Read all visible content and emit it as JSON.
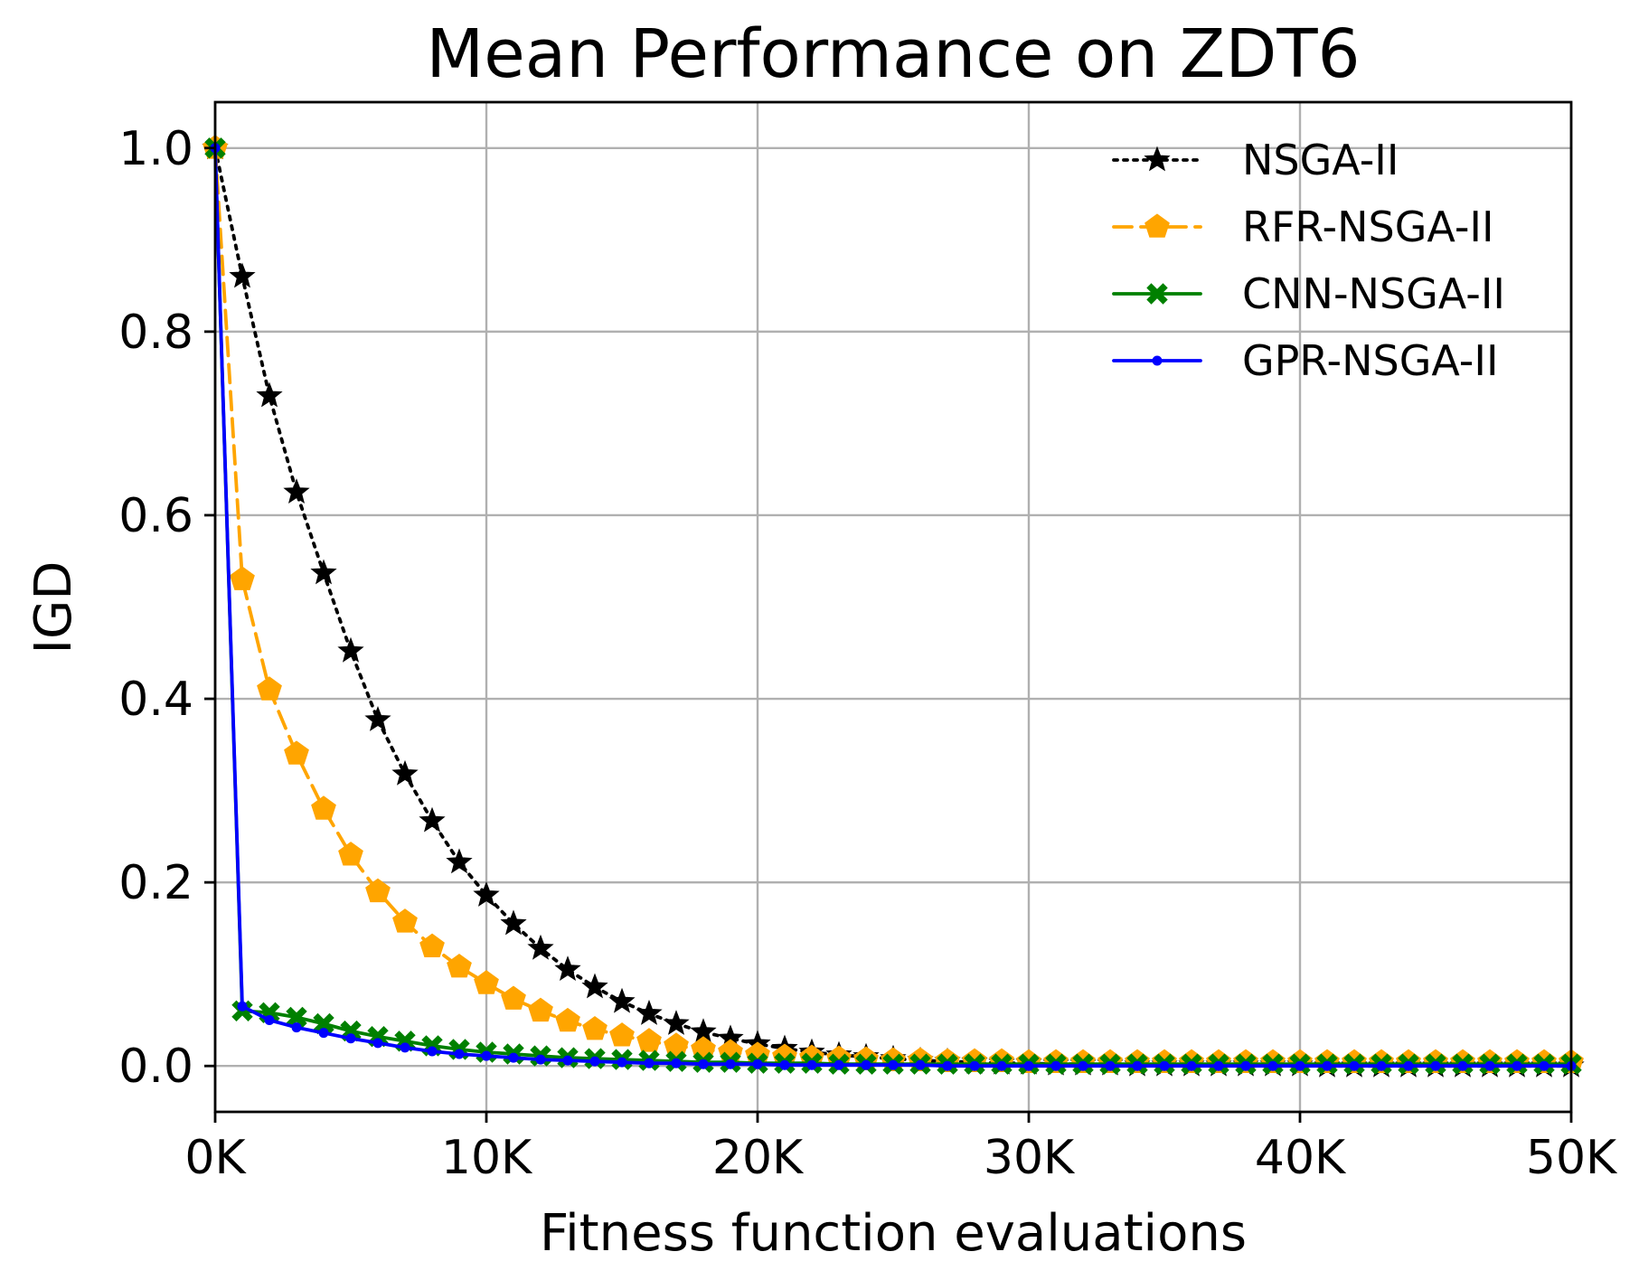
{
  "chart_data": {
    "type": "line",
    "title": "Mean Performance on ZDT6",
    "xlabel": "Fitness function evaluations",
    "ylabel": "IGD",
    "xlim": [
      0,
      50000
    ],
    "ylim": [
      -0.05,
      1.05
    ],
    "grid": true,
    "legend_position": "top-right",
    "x_ticks": [
      {
        "value": 0,
        "label": "0K"
      },
      {
        "value": 10000,
        "label": "10K"
      },
      {
        "value": 20000,
        "label": "20K"
      },
      {
        "value": 30000,
        "label": "30K"
      },
      {
        "value": 40000,
        "label": "40K"
      },
      {
        "value": 50000,
        "label": "50K"
      }
    ],
    "y_ticks": [
      {
        "value": 0.0,
        "label": "0.0"
      },
      {
        "value": 0.2,
        "label": "0.2"
      },
      {
        "value": 0.4,
        "label": "0.4"
      },
      {
        "value": 0.6,
        "label": "0.6"
      },
      {
        "value": 0.8,
        "label": "0.8"
      },
      {
        "value": 1.0,
        "label": "1.0"
      }
    ],
    "x": [
      0,
      1000,
      2000,
      3000,
      4000,
      5000,
      6000,
      7000,
      8000,
      9000,
      10000,
      11000,
      12000,
      13000,
      14000,
      15000,
      16000,
      17000,
      18000,
      19000,
      20000,
      21000,
      22000,
      23000,
      24000,
      25000,
      26000,
      27000,
      28000,
      29000,
      30000,
      31000,
      32000,
      33000,
      34000,
      35000,
      36000,
      37000,
      38000,
      39000,
      40000,
      41000,
      42000,
      43000,
      44000,
      45000,
      46000,
      47000,
      48000,
      49000,
      50000
    ],
    "series": [
      {
        "name": "NSGA-II",
        "color": "#000000",
        "linestyle": "dotted",
        "marker": "star",
        "values": [
          1.0,
          0.86,
          0.73,
          0.625,
          0.537,
          0.452,
          0.377,
          0.318,
          0.267,
          0.222,
          0.186,
          0.155,
          0.128,
          0.105,
          0.086,
          0.07,
          0.057,
          0.046,
          0.037,
          0.03,
          0.024,
          0.019,
          0.015,
          0.012,
          0.01,
          0.008,
          0.006,
          0.005,
          0.004,
          0.003,
          0.003,
          0.002,
          0.002,
          0.002,
          0.001,
          0.001,
          0.001,
          0.001,
          0.001,
          0.001,
          0.001,
          0.0,
          0.0,
          0.0,
          0.0,
          0.0,
          0.0,
          0.0,
          0.0,
          0.0,
          0.0
        ]
      },
      {
        "name": "RFR-NSGA-II",
        "color": "#ffa500",
        "linestyle": "dashed",
        "marker": "pentagon",
        "values": [
          1.0,
          0.53,
          0.41,
          0.34,
          0.28,
          0.23,
          0.19,
          0.157,
          0.13,
          0.108,
          0.09,
          0.073,
          0.06,
          0.049,
          0.04,
          0.033,
          0.027,
          0.022,
          0.018,
          0.015,
          0.012,
          0.01,
          0.009,
          0.008,
          0.007,
          0.006,
          0.006,
          0.005,
          0.005,
          0.005,
          0.004,
          0.004,
          0.004,
          0.004,
          0.004,
          0.004,
          0.004,
          0.004,
          0.004,
          0.004,
          0.004,
          0.004,
          0.004,
          0.004,
          0.004,
          0.004,
          0.004,
          0.004,
          0.004,
          0.004,
          0.004
        ]
      },
      {
        "name": "CNN-NSGA-II",
        "color": "#008000",
        "linestyle": "solid",
        "marker": "x-filled",
        "values": [
          1.0,
          0.06,
          0.058,
          0.053,
          0.046,
          0.038,
          0.032,
          0.027,
          0.022,
          0.018,
          0.015,
          0.013,
          0.011,
          0.009,
          0.008,
          0.007,
          0.006,
          0.005,
          0.004,
          0.004,
          0.003,
          0.003,
          0.003,
          0.002,
          0.002,
          0.002,
          0.002,
          0.002,
          0.002,
          0.002,
          0.002,
          0.002,
          0.002,
          0.002,
          0.002,
          0.002,
          0.002,
          0.002,
          0.002,
          0.002,
          0.002,
          0.002,
          0.002,
          0.002,
          0.002,
          0.002,
          0.002,
          0.002,
          0.002,
          0.002,
          0.002
        ]
      },
      {
        "name": "GPR-NSGA-II",
        "color": "#0000ff",
        "linestyle": "solid",
        "marker": "dot",
        "values": [
          1.0,
          0.065,
          0.05,
          0.042,
          0.036,
          0.03,
          0.025,
          0.02,
          0.016,
          0.013,
          0.011,
          0.009,
          0.007,
          0.006,
          0.005,
          0.004,
          0.003,
          0.003,
          0.002,
          0.002,
          0.002,
          0.001,
          0.001,
          0.001,
          0.001,
          0.001,
          0.001,
          0.0,
          0.0,
          0.0,
          0.0,
          0.0,
          0.0,
          0.0,
          0.0,
          0.0,
          0.0,
          0.0,
          0.0,
          0.0,
          0.0,
          0.0,
          0.0,
          0.0,
          0.0,
          0.0,
          0.0,
          0.0,
          0.0,
          0.0,
          0.0
        ]
      }
    ]
  }
}
